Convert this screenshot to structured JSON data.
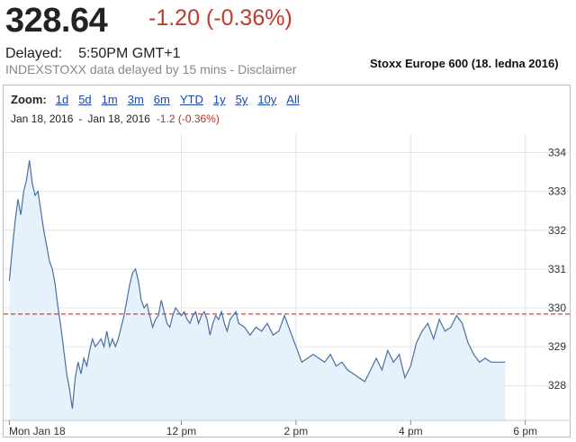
{
  "header": {
    "price": "328.64",
    "change": "-1.20 (-0.36%)",
    "delayed_label": "Delayed:",
    "delayed_time": "5:50PM GMT+1",
    "disclaimer": "INDEXSTOXX data delayed by 15 mins - Disclaimer",
    "title": "Stoxx Europe 600 (18. ledna 2016)"
  },
  "zoom": {
    "label": "Zoom:",
    "options": [
      "1d",
      "5d",
      "1m",
      "3m",
      "6m",
      "YTD",
      "1y",
      "5y",
      "10y",
      "All"
    ]
  },
  "range": {
    "start": "Jan 18, 2016",
    "separator": "-",
    "end": "Jan 18, 2016",
    "change": "-1.2 (-0.36%)"
  },
  "colors": {
    "line": "#4a6fa5",
    "fill": "#e6f2fb",
    "prev_close": "#9b2a2a",
    "change_negative": "#c0392b",
    "link": "#1a44b0"
  },
  "chart_data": {
    "type": "area",
    "ylim": [
      327.1,
      334.5
    ],
    "y_ticks": [
      334,
      333,
      332,
      331,
      330,
      329,
      328
    ],
    "y_tick_labels": [
      "334",
      "333",
      "332",
      "331",
      "330",
      "329",
      "328"
    ],
    "x_ticks": [
      "Mon Jan 18",
      "12 pm",
      "2 pm",
      "4 pm",
      "6 pm"
    ],
    "x_tick_times": [
      9.0,
      12.0,
      14.0,
      16.0,
      18.0
    ],
    "xlim": [
      8.9,
      18.35
    ],
    "previous_close": 329.84,
    "grid": true,
    "series": [
      {
        "x": [
          9.0,
          9.05,
          9.1,
          9.15,
          9.2,
          9.25,
          9.3,
          9.35,
          9.4,
          9.45,
          9.5,
          9.55,
          9.6,
          9.65,
          9.7,
          9.75,
          9.8,
          9.85,
          9.9,
          9.95,
          10.0,
          10.05,
          10.1,
          10.15,
          10.2,
          10.25,
          10.3,
          10.35,
          10.4,
          10.45,
          10.5,
          10.55,
          10.6,
          10.65,
          10.7,
          10.75,
          10.8,
          10.85,
          10.9,
          10.95,
          11.0,
          11.05,
          11.1,
          11.15,
          11.2,
          11.25,
          11.3,
          11.35,
          11.4,
          11.45,
          11.5,
          11.55,
          11.6,
          11.65,
          11.7,
          11.75,
          11.8,
          11.85,
          11.9,
          11.95,
          12.0,
          12.05,
          12.1,
          12.15,
          12.2,
          12.25,
          12.3,
          12.35,
          12.4,
          12.45,
          12.5,
          12.55,
          12.6,
          12.65,
          12.7,
          12.75,
          12.8,
          12.85,
          12.9,
          12.95,
          13.0,
          13.1,
          13.2,
          13.3,
          13.4,
          13.5,
          13.6,
          13.7,
          13.8,
          13.9,
          14.0,
          14.1,
          14.2,
          14.3,
          14.4,
          14.5,
          14.6,
          14.7,
          14.8,
          14.9,
          15.0,
          15.1,
          15.2,
          15.3,
          15.4,
          15.5,
          15.6,
          15.7,
          15.8,
          15.9,
          16.0,
          16.1,
          16.2,
          16.3,
          16.4,
          16.5,
          16.6,
          16.7,
          16.8,
          16.9,
          17.0,
          17.1,
          17.2,
          17.3,
          17.4,
          17.5,
          17.6,
          17.65
        ],
        "y": [
          330.7,
          331.5,
          332.2,
          332.8,
          332.4,
          333.0,
          333.3,
          333.8,
          333.2,
          332.9,
          333.0,
          332.5,
          332.0,
          331.6,
          331.2,
          331.0,
          330.6,
          330.0,
          329.5,
          328.9,
          328.3,
          327.9,
          327.4,
          328.2,
          328.6,
          328.3,
          328.7,
          328.5,
          328.9,
          329.2,
          329.0,
          329.1,
          329.2,
          329.0,
          329.4,
          329.0,
          329.2,
          329.0,
          329.2,
          329.5,
          329.8,
          330.2,
          330.6,
          330.9,
          331.0,
          330.7,
          330.2,
          330.0,
          330.1,
          329.8,
          329.5,
          329.7,
          329.8,
          330.2,
          329.9,
          329.6,
          329.5,
          329.8,
          330.0,
          329.9,
          329.8,
          329.9,
          329.7,
          329.6,
          329.8,
          329.9,
          329.6,
          329.8,
          329.9,
          329.7,
          329.3,
          329.6,
          329.8,
          329.7,
          329.9,
          329.6,
          329.4,
          329.7,
          329.8,
          329.9,
          329.6,
          329.5,
          329.3,
          329.5,
          329.4,
          329.6,
          329.3,
          329.4,
          329.8,
          329.4,
          329.0,
          328.6,
          328.7,
          328.8,
          328.7,
          328.6,
          328.8,
          328.5,
          328.6,
          328.4,
          328.3,
          328.2,
          328.1,
          328.4,
          328.7,
          328.4,
          328.9,
          328.6,
          328.8,
          328.2,
          328.5,
          329.1,
          329.4,
          329.6,
          329.2,
          329.7,
          329.4,
          329.5,
          329.8,
          329.6,
          329.1,
          328.8,
          328.6,
          328.7,
          328.6,
          328.6,
          328.6,
          328.6
        ]
      }
    ]
  }
}
